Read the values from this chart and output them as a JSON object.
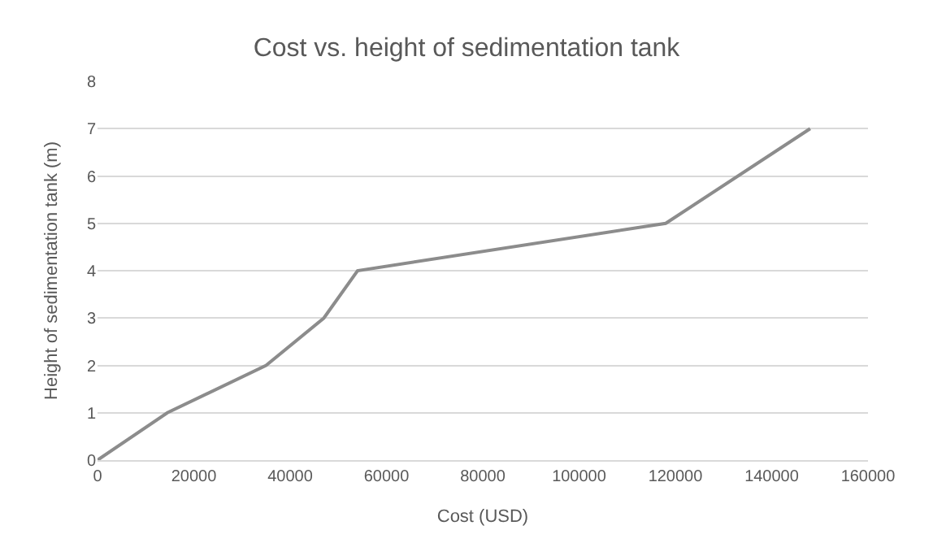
{
  "chart_data": {
    "type": "line",
    "title": "Cost vs. height of sedimentation tank",
    "xlabel": "Cost (USD)",
    "ylabel": "Height of sedimentation tank (m)",
    "x": [
      0,
      14500,
      35000,
      47000,
      54000,
      118000,
      148000
    ],
    "series": [
      {
        "color": "#8c8c8c",
        "values": [
          0,
          1,
          2,
          3,
          4,
          5,
          7
        ]
      }
    ],
    "xlim": [
      0,
      160000
    ],
    "xticks": [
      0,
      20000,
      40000,
      60000,
      80000,
      100000,
      120000,
      140000,
      160000
    ],
    "ylim": [
      0,
      8
    ],
    "yticks": [
      0,
      1,
      2,
      3,
      4,
      5,
      6,
      7,
      8
    ],
    "grid": "y",
    "marker": "none",
    "line_style": "solid"
  }
}
